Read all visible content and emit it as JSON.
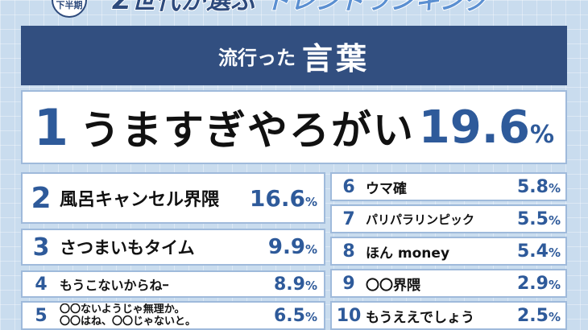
{
  "header": {
    "badge": "下半期",
    "title_prefix": "Z世代が選ぶ",
    "title_suffix": "トレンドランキング"
  },
  "category": {
    "small": "流行った",
    "big": "言葉"
  },
  "ranking": [
    {
      "rank": "1",
      "word": "うますぎやろがい",
      "value": "19.6",
      "unit": "%"
    },
    {
      "rank": "2",
      "word": "風呂キャンセル界隈",
      "value": "16.6",
      "unit": "%"
    },
    {
      "rank": "3",
      "word": "さつまいもタイム",
      "value": "9.9",
      "unit": "%"
    },
    {
      "rank": "4",
      "word": "もうこないからねｰ",
      "value": "8.9",
      "unit": "%"
    },
    {
      "rank": "5",
      "word_line1": "〇〇ないようじゃ無理か。",
      "word_line2": "〇〇はね、〇〇じゃないと。",
      "value": "6.5",
      "unit": "%"
    },
    {
      "rank": "6",
      "word": "ウマ確",
      "value": "5.8",
      "unit": "%"
    },
    {
      "rank": "7",
      "word": "パリパラリンピック",
      "value": "5.5",
      "unit": "%"
    },
    {
      "rank": "8",
      "word": "ほん money",
      "value": "5.4",
      "unit": "%"
    },
    {
      "rank": "9",
      "word": "〇〇界隈",
      "value": "2.9",
      "unit": "%"
    },
    {
      "rank": "10",
      "word": "もうええでしょう",
      "value": "2.5",
      "unit": "%"
    }
  ]
}
